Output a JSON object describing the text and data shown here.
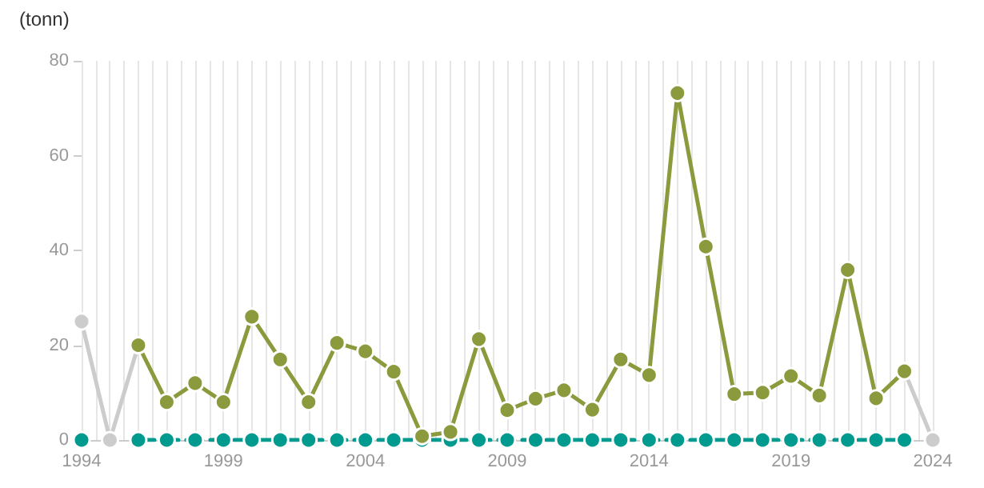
{
  "chart_data": {
    "type": "line",
    "ylabel": "(tonn)",
    "x": [
      1994,
      1995,
      1996,
      1997,
      1998,
      1999,
      2000,
      2001,
      2002,
      2003,
      2004,
      2005,
      2006,
      2007,
      2008,
      2009,
      2010,
      2011,
      2012,
      2013,
      2014,
      2015,
      2016,
      2017,
      2018,
      2019,
      2020,
      2021,
      2022,
      2023,
      2024
    ],
    "series": [
      {
        "color": "#009a8e",
        "line_style": "dashed",
        "values": [
          0,
          null,
          0,
          0,
          0,
          0,
          0,
          0,
          0,
          0,
          0,
          0,
          0,
          0,
          0,
          0,
          0,
          0,
          0,
          0,
          0,
          0,
          0,
          0,
          0,
          0,
          0,
          0,
          0,
          0,
          null
        ]
      },
      {
        "color": "#cccccc",
        "line_style": "solid",
        "values": [
          25,
          0,
          20,
          null,
          null,
          null,
          null,
          null,
          null,
          null,
          null,
          null,
          null,
          null,
          null,
          null,
          null,
          null,
          null,
          null,
          null,
          null,
          null,
          null,
          null,
          null,
          null,
          null,
          null,
          14.5,
          0
        ]
      },
      {
        "color": "#8c9a3e",
        "line_style": "solid",
        "values": [
          null,
          null,
          20,
          8,
          12,
          8,
          26,
          17,
          8,
          20.5,
          18.7,
          14.4,
          0.8,
          1.7,
          21.3,
          6.3,
          8.7,
          10.5,
          6.4,
          17,
          13.7,
          73.2,
          40.8,
          9.7,
          10,
          13.5,
          9.4,
          35.9,
          8.8,
          14.5,
          null
        ]
      }
    ],
    "marker": "circle",
    "grid": "x",
    "xlim": [
      1994,
      2024
    ],
    "xticks": [
      1994,
      {
        "value": 1994.5,
        "label": null
      },
      {
        "value": 1995,
        "label": null
      },
      {
        "value": 1995.5,
        "label": null
      },
      {
        "value": 1996,
        "label": null
      },
      {
        "value": 1996.5,
        "label": null
      },
      {
        "value": 1997,
        "label": null
      },
      {
        "value": 1997.5,
        "label": null
      },
      {
        "value": 1998,
        "label": null
      },
      {
        "value": 1998.5,
        "label": null
      },
      1999,
      {
        "value": 1999.5,
        "label": null
      },
      {
        "value": 2000,
        "label": null
      },
      {
        "value": 2000.5,
        "label": null
      },
      {
        "value": 2001,
        "label": null
      },
      {
        "value": 2001.5,
        "label": null
      },
      {
        "value": 2002,
        "label": null
      },
      {
        "value": 2002.5,
        "label": null
      },
      {
        "value": 2003,
        "label": null
      },
      {
        "value": 2003.5,
        "label": null
      },
      2004,
      {
        "value": 2004.5,
        "label": null
      },
      {
        "value": 2005,
        "label": null
      },
      {
        "value": 2005.5,
        "label": null
      },
      {
        "value": 2006,
        "label": null
      },
      {
        "value": 2006.5,
        "label": null
      },
      {
        "value": 2007,
        "label": null
      },
      {
        "value": 2007.5,
        "label": null
      },
      {
        "value": 2008,
        "label": null
      },
      {
        "value": 2008.5,
        "label": null
      },
      2009,
      {
        "value": 2009.5,
        "label": null
      },
      {
        "value": 2010,
        "label": null
      },
      {
        "value": 2010.5,
        "label": null
      },
      {
        "value": 2011,
        "label": null
      },
      {
        "value": 2011.5,
        "label": null
      },
      {
        "value": 2012,
        "label": null
      },
      {
        "value": 2012.5,
        "label": null
      },
      {
        "value": 2013,
        "label": null
      },
      {
        "value": 2013.5,
        "label": null
      },
      2014,
      {
        "value": 2014.5,
        "label": null
      },
      {
        "value": 2015,
        "label": null
      },
      {
        "value": 2015.5,
        "label": null
      },
      {
        "value": 2016,
        "label": null
      },
      {
        "value": 2016.5,
        "label": null
      },
      {
        "value": 2017,
        "label": null
      },
      {
        "value": 2017.5,
        "label": null
      },
      {
        "value": 2018,
        "label": null
      },
      {
        "value": 2018.5,
        "label": null
      },
      2019,
      {
        "value": 2019.5,
        "label": null
      },
      {
        "value": 2020,
        "label": null
      },
      {
        "value": 2020.5,
        "label": null
      },
      {
        "value": 2021,
        "label": null
      },
      {
        "value": 2021.5,
        "label": null
      },
      {
        "value": 2022,
        "label": null
      },
      {
        "value": 2022.5,
        "label": null
      },
      {
        "value": 2023,
        "label": null
      },
      {
        "value": 2023.5,
        "label": null
      },
      2024
    ],
    "ylim": [
      0,
      80
    ],
    "yticks": [
      0,
      20,
      40,
      60,
      80
    ]
  }
}
